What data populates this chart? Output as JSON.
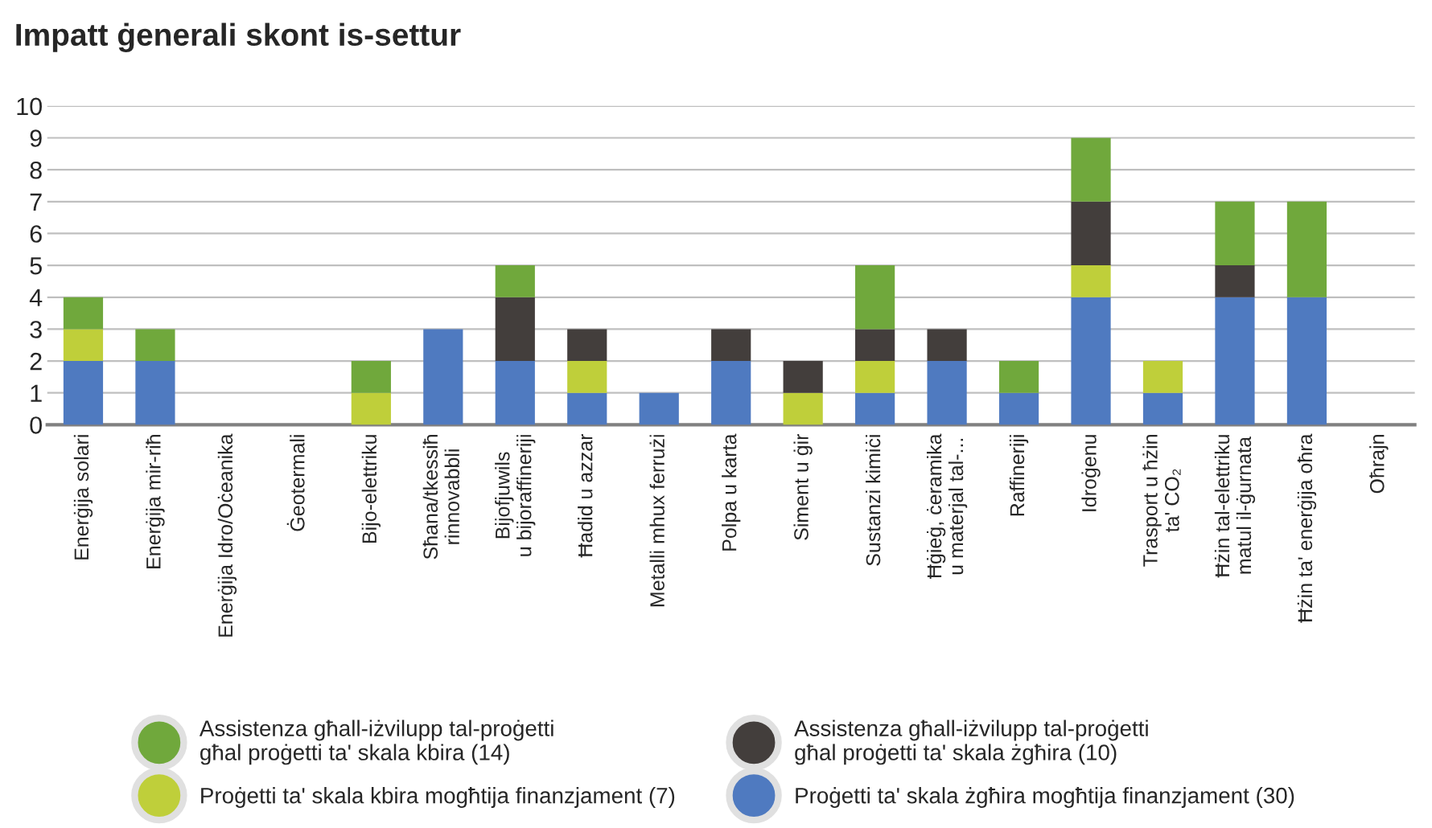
{
  "chart_data": {
    "type": "bar",
    "title": "Impatt ġenerali skont is-settur",
    "stacked": true,
    "categories": [
      "Enerġija solari",
      "Enerġija mir-riħ",
      "Enerġija Idro/Oċeanika",
      "Ġeotermali",
      "Bijo-elettriku",
      "Sħana/tkessiħ\nrinnovabbli",
      "Bijofjuwils\nu bijoraffineriji",
      "Ħadid u azzar",
      "Metalli mhux ferrużi",
      "Polpa u karta",
      "Siment u ġir",
      "Sustanzi kimiċi",
      "Ħġieġ, ċeramika\nu materjal tal-...",
      "Raffineriji",
      "Idroġenu",
      "Trasport u ħżin\nta' CO₂",
      "Ħżin tal-elettriku\nmatul il-ġurnata",
      "Ħżin ta' enerġija oħra",
      "Oħrajn"
    ],
    "series": [
      {
        "name": "Proġetti ta' skala żgħira mogħtija finanzjament (30)",
        "color": "#4f7ac0",
        "values": [
          2,
          2,
          0,
          0,
          0,
          3,
          2,
          1,
          1,
          2,
          0,
          1,
          2,
          1,
          4,
          1,
          4,
          4,
          0
        ]
      },
      {
        "name": "Proġetti ta' skala kbira mogħtija finanzjament (7)",
        "color": "#bfcf3a",
        "values": [
          1,
          0,
          0,
          0,
          1,
          0,
          0,
          1,
          0,
          0,
          1,
          1,
          0,
          0,
          1,
          1,
          0,
          0,
          0
        ]
      },
      {
        "name": "Assistenza għall-iżvilupp tal-proġetti\ngħal proġetti ta' skala żgħira (10)",
        "color": "#433e3c",
        "values": [
          0,
          0,
          0,
          0,
          0,
          0,
          2,
          1,
          0,
          1,
          1,
          1,
          1,
          0,
          2,
          0,
          1,
          0,
          0
        ]
      },
      {
        "name": "Assistenza għall-iżvilupp tal-proġetti\ngħal proġetti ta' skala kbira (14)",
        "color": "#70a83c",
        "values": [
          1,
          1,
          0,
          0,
          1,
          0,
          1,
          0,
          0,
          0,
          0,
          2,
          0,
          1,
          2,
          0,
          2,
          3,
          0
        ]
      }
    ],
    "ylim": [
      0,
      10
    ],
    "yticks": [
      0,
      1,
      2,
      3,
      4,
      5,
      6,
      7,
      8,
      9,
      10
    ],
    "grid": "y",
    "legend": "bottom"
  }
}
